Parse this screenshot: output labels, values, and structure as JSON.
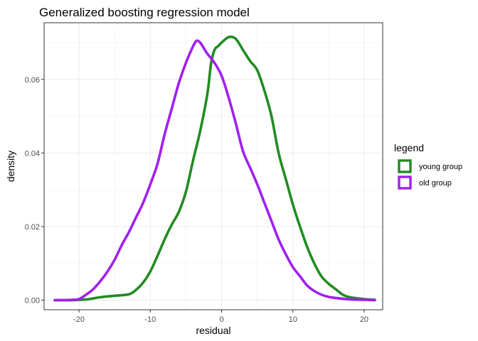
{
  "chart_data": {
    "type": "line",
    "title": "Generalized boosting regression model",
    "xlabel": "residual",
    "ylabel": "density",
    "xlim": [
      -24.9,
      22.6
    ],
    "ylim": [
      -0.0026,
      0.0754
    ],
    "x_ticks": [
      -20,
      -10,
      0,
      10,
      20
    ],
    "x_tick_labels": [
      "-20",
      "-10",
      "0",
      "10",
      "20"
    ],
    "y_ticks": [
      0.0,
      0.02,
      0.04,
      0.06
    ],
    "y_tick_labels": [
      "0.00",
      "0.02",
      "0.04",
      "0.06"
    ],
    "grid": true,
    "legend": {
      "title": "legend",
      "position": "right",
      "entries": [
        "young group",
        "old group"
      ]
    },
    "series": [
      {
        "name": "young group",
        "color": "#228b22",
        "x": [
          -23.4,
          -21,
          -19,
          -17,
          -15,
          -13,
          -12,
          -11,
          -10,
          -9,
          -8,
          -7,
          -6,
          -5,
          -4,
          -3,
          -2,
          -1.5,
          -1,
          -0.5,
          0,
          1,
          2,
          3,
          4,
          5,
          6,
          7,
          8,
          9,
          10,
          11,
          12,
          13,
          14,
          15,
          16,
          17,
          18,
          20,
          21.5
        ],
        "y": [
          0.0,
          0.0,
          0.0002,
          0.0008,
          0.0012,
          0.0016,
          0.0028,
          0.0048,
          0.0078,
          0.012,
          0.0165,
          0.0205,
          0.024,
          0.0295,
          0.038,
          0.046,
          0.056,
          0.064,
          0.068,
          0.069,
          0.07,
          0.0715,
          0.071,
          0.068,
          0.065,
          0.0625,
          0.057,
          0.05,
          0.04,
          0.033,
          0.026,
          0.02,
          0.0145,
          0.01,
          0.0065,
          0.0045,
          0.003,
          0.0015,
          0.0008,
          0.0003,
          0.0001
        ]
      },
      {
        "name": "old group",
        "color": "#a020f0",
        "x": [
          -23.4,
          -21,
          -20,
          -19,
          -18,
          -17,
          -16,
          -15,
          -14,
          -13,
          -12,
          -11,
          -10,
          -9,
          -8,
          -7,
          -6,
          -5,
          -4,
          -3.5,
          -3,
          -2.5,
          -2,
          -1,
          0,
          1,
          2,
          3,
          4,
          5,
          6,
          7,
          8,
          9,
          10,
          11,
          12,
          13,
          14,
          15,
          16,
          18,
          20,
          21.5
        ],
        "y": [
          0.0,
          0.0001,
          0.0003,
          0.0015,
          0.003,
          0.0052,
          0.0078,
          0.011,
          0.015,
          0.0185,
          0.0225,
          0.0265,
          0.0315,
          0.037,
          0.045,
          0.052,
          0.059,
          0.0645,
          0.069,
          0.0705,
          0.07,
          0.0685,
          0.067,
          0.0645,
          0.061,
          0.055,
          0.048,
          0.0405,
          0.036,
          0.0315,
          0.0265,
          0.0215,
          0.0165,
          0.0125,
          0.009,
          0.0065,
          0.004,
          0.0025,
          0.0015,
          0.0009,
          0.0006,
          0.0002,
          0.0001,
          0.0
        ]
      }
    ]
  }
}
